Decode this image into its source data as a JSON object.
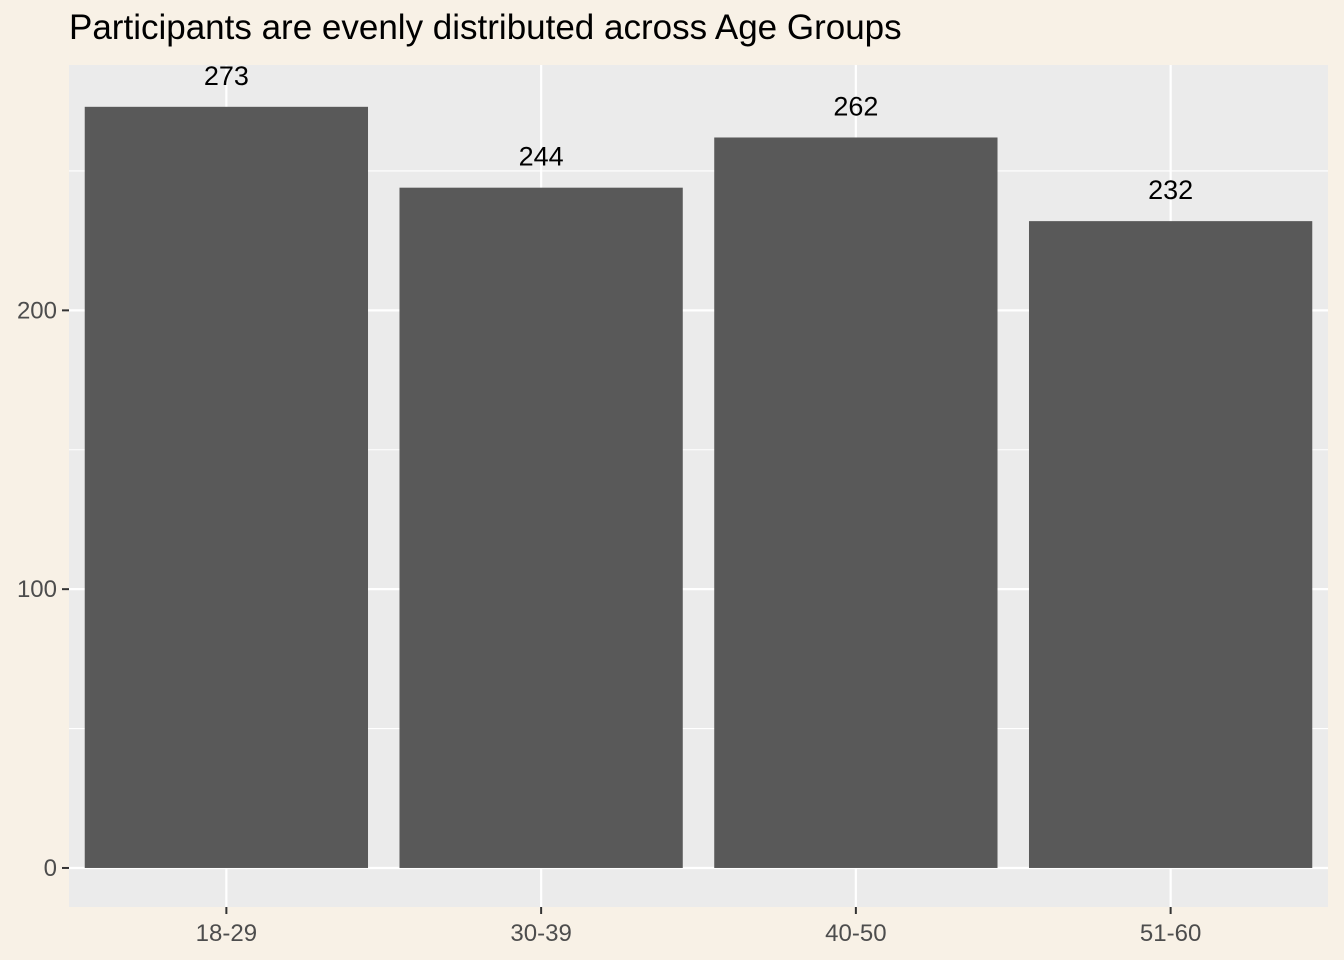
{
  "chart_data": {
    "type": "bar",
    "title": "Participants are evenly distributed across Age Groups",
    "xlabel": "",
    "ylabel": "",
    "categories": [
      "18-29",
      "30-39",
      "40-50",
      "51-60"
    ],
    "values": [
      273,
      244,
      262,
      232
    ],
    "data_labels": [
      "273",
      "244",
      "262",
      "232"
    ],
    "y_ticks": [
      0,
      100,
      200
    ],
    "ylim": [
      -14,
      288
    ],
    "grid": true,
    "legend": "none",
    "colors": {
      "bar": "#595959",
      "panel": "#ebebeb",
      "gridline": "#ffffff",
      "background": "#f8f1e6"
    }
  }
}
